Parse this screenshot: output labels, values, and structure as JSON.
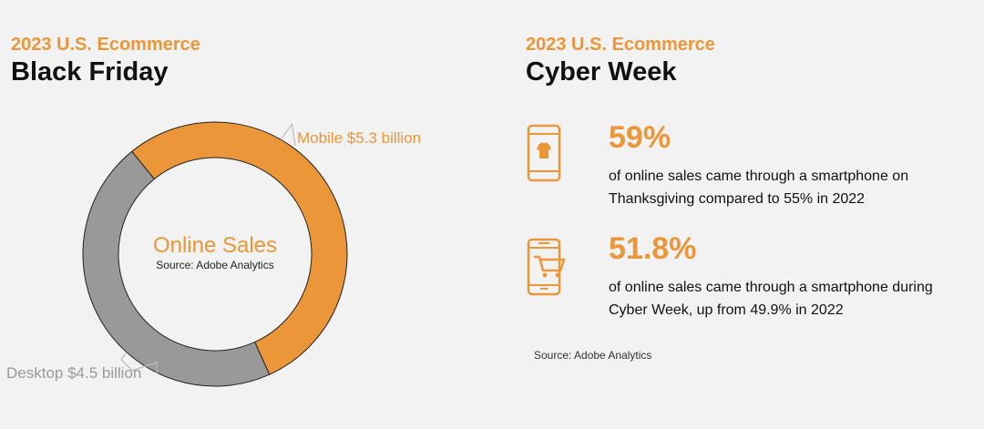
{
  "left": {
    "eyebrow": "2023 U.S. Ecommerce",
    "title": "Black Friday",
    "center_title": "Online Sales",
    "center_source": "Source:  Adobe Analytics"
  },
  "right": {
    "eyebrow": "2023 U.S. Ecommerce",
    "title": "Cyber Week",
    "stats": [
      {
        "value": "59%",
        "icon": "phone-shirt-icon",
        "description": "of online sales came through a smartphone on Thanksgiving compared to 55% in 2022"
      },
      {
        "value": "51.8%",
        "icon": "phone-cart-icon",
        "description": "of online sales came through a smartphone during Cyber Week, up from 49.9% in 2022"
      }
    ],
    "source": "Source:  Adobe Analytics"
  },
  "colors": {
    "accent": "#eb9638",
    "desktop_slice": "#999999",
    "desktop_label": "#9a9a9a",
    "background": "#f2f2f2"
  },
  "chart_data": {
    "type": "pie",
    "donut": true,
    "title": "Black Friday",
    "subtitle": "2023 U.S. Ecommerce",
    "center_label": "Online Sales",
    "slices": [
      {
        "label": "Mobile $5.3 billion",
        "category": "Mobile",
        "value": 5.3,
        "unit": "billion USD",
        "color": "#eb9638"
      },
      {
        "label": "Desktop $4.5 billion",
        "category": "Desktop",
        "value": 4.5,
        "unit": "billion USD",
        "color": "#999999"
      }
    ],
    "source": "Source:  Adobe Analytics"
  }
}
